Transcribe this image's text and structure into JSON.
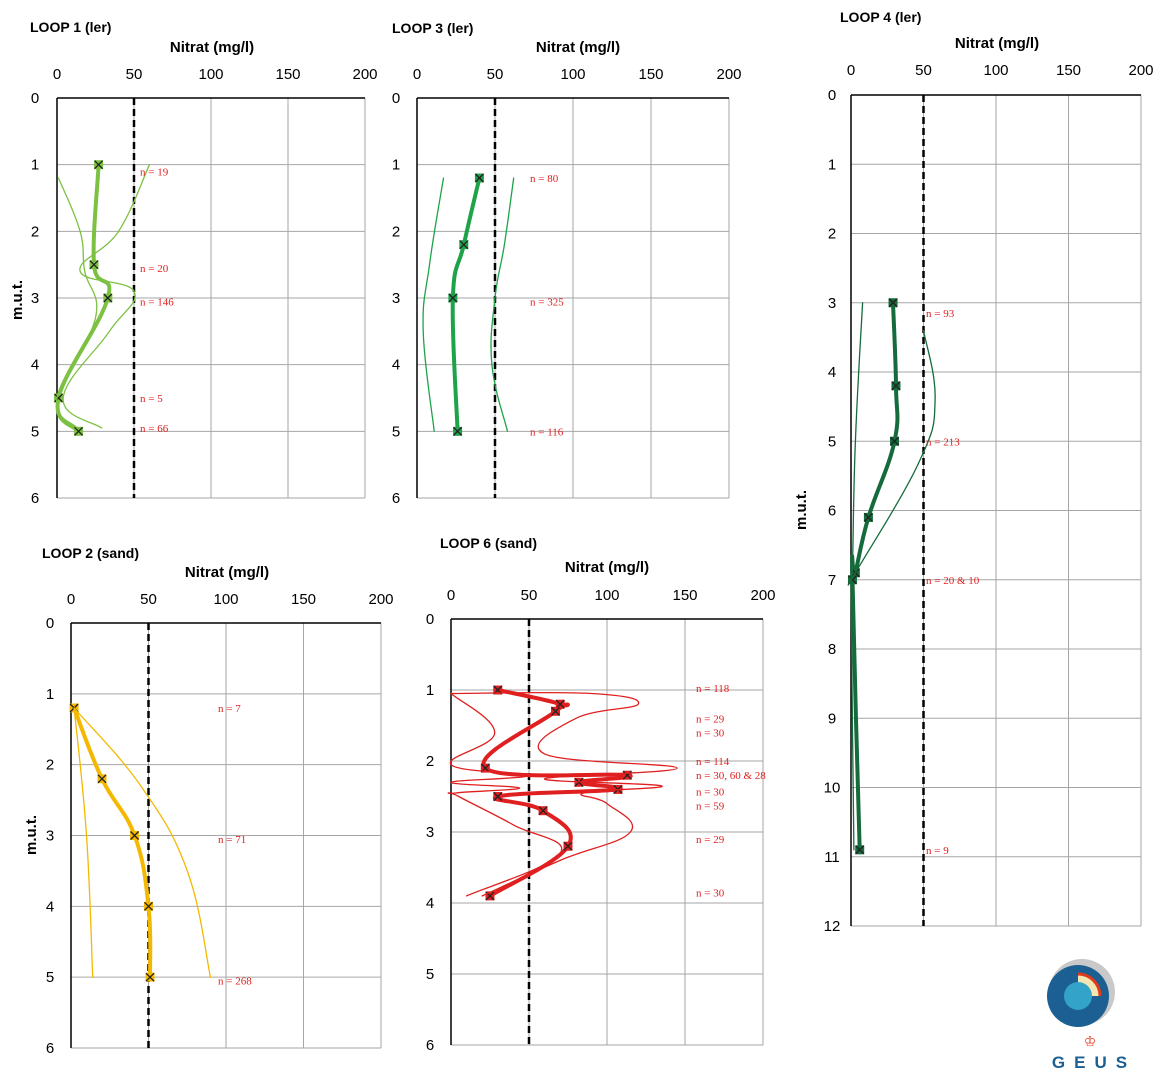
{
  "figure": {
    "logo": {
      "text": "GEUS"
    }
  },
  "chart_data": [
    {
      "id": "loop1",
      "type": "line",
      "title": "LOOP 1 (ler)",
      "xlabel": "Nitrat (mg/l)",
      "ylabel": "m.u.t.",
      "xlim": [
        0,
        200
      ],
      "ylim": [
        6,
        0
      ],
      "xticks": [
        0,
        50,
        100,
        150,
        200
      ],
      "yticks": [
        0,
        1,
        2,
        3,
        4,
        5,
        6
      ],
      "threshold": 50,
      "color": "#7cc142",
      "series": [
        {
          "role": "mean",
          "x": [
            27,
            24,
            33,
            1,
            14
          ],
          "y": [
            1.0,
            2.5,
            3.0,
            4.5,
            5.0
          ]
        },
        {
          "role": "lower",
          "x": [
            1,
            15,
            18,
            25,
            0,
            13
          ],
          "y": [
            1.2,
            2.0,
            2.6,
            3.3,
            4.5,
            4.95
          ]
        },
        {
          "role": "upper",
          "x": [
            60,
            40,
            15,
            50,
            34,
            4,
            29
          ],
          "y": [
            1.0,
            2.0,
            2.6,
            2.9,
            3.5,
            4.5,
            4.95
          ]
        }
      ],
      "annotations": [
        {
          "text": "n = 19",
          "y": 1.1
        },
        {
          "text": "n = 20",
          "y": 2.55
        },
        {
          "text": "n = 146",
          "y": 3.05
        },
        {
          "text": "n = 5",
          "y": 4.5
        },
        {
          "text": "n = 66",
          "y": 4.95
        }
      ]
    },
    {
      "id": "loop3",
      "type": "line",
      "title": "LOOP 3 (ler)",
      "xlabel": "Nitrat (mg/l)",
      "ylabel": "",
      "xlim": [
        0,
        200
      ],
      "ylim": [
        6,
        0
      ],
      "xticks": [
        0,
        50,
        100,
        150,
        200
      ],
      "yticks": [
        0,
        1,
        2,
        3,
        4,
        5,
        6
      ],
      "threshold": 50,
      "color": "#1ea34a",
      "series": [
        {
          "role": "mean",
          "x": [
            40,
            30,
            23,
            26
          ],
          "y": [
            1.2,
            2.2,
            3.0,
            5.0
          ]
        },
        {
          "role": "lower",
          "x": [
            17,
            8,
            4,
            11
          ],
          "y": [
            1.2,
            2.5,
            3.5,
            5.0
          ]
        },
        {
          "role": "upper",
          "x": [
            62,
            56,
            50,
            48,
            58
          ],
          "y": [
            1.2,
            2.2,
            3.0,
            4.0,
            5.0
          ]
        }
      ],
      "annotations": [
        {
          "text": "n = 80",
          "y": 1.2
        },
        {
          "text": "n = 325",
          "y": 3.05
        },
        {
          "text": "n = 116",
          "y": 5.0
        }
      ]
    },
    {
      "id": "loop4",
      "type": "line",
      "title": "LOOP 4 (ler)",
      "xlabel": "Nitrat (mg/l)",
      "ylabel": "m.u.t.",
      "xlim": [
        0,
        200
      ],
      "ylim": [
        12,
        0
      ],
      "xticks": [
        0,
        50,
        100,
        150,
        200
      ],
      "yticks": [
        0,
        1,
        2,
        3,
        4,
        5,
        6,
        7,
        8,
        9,
        10,
        11,
        12
      ],
      "threshold": 50,
      "color": "#156b3b",
      "series": [
        {
          "role": "mean",
          "x": [
            29,
            31,
            30,
            12,
            3,
            1,
            6
          ],
          "y": [
            3.0,
            4.2,
            5.0,
            6.1,
            6.9,
            7.0,
            10.9
          ]
        },
        {
          "role": "lower",
          "x": [
            8,
            3,
            1,
            0,
            2
          ],
          "y": [
            3.0,
            5.0,
            6.8,
            7.0,
            10.9
          ]
        },
        {
          "role": "upper",
          "x": [
            50,
            58,
            47,
            3,
            0
          ],
          "y": [
            3.4,
            4.4,
            5.3,
            6.9,
            7.0
          ]
        }
      ],
      "annotations": [
        {
          "text": "n = 93",
          "y": 3.15
        },
        {
          "text": "n = 213",
          "y": 5.0
        },
        {
          "text": "n = 20 & 10",
          "y": 7.0
        },
        {
          "text": "n = 9",
          "y": 10.9
        }
      ]
    },
    {
      "id": "loop2",
      "type": "line",
      "title": "LOOP 2 (sand)",
      "xlabel": "Nitrat (mg/l)",
      "ylabel": "m.u.t.",
      "xlim": [
        0,
        200
      ],
      "ylim": [
        6,
        0
      ],
      "xticks": [
        0,
        50,
        100,
        150,
        200
      ],
      "yticks": [
        0,
        1,
        2,
        3,
        4,
        5,
        6
      ],
      "threshold": 50,
      "color": "#f5b800",
      "series": [
        {
          "role": "mean",
          "x": [
            2,
            20,
            41,
            50,
            51
          ],
          "y": [
            1.2,
            2.2,
            3.0,
            4.0,
            5.0
          ]
        },
        {
          "role": "lower",
          "x": [
            2,
            10,
            14
          ],
          "y": [
            1.2,
            3.0,
            5.0
          ]
        },
        {
          "role": "upper",
          "x": [
            2,
            45,
            75,
            90
          ],
          "y": [
            1.2,
            2.3,
            3.5,
            5.0
          ]
        }
      ],
      "annotations": [
        {
          "text": "n = 7",
          "y": 1.2
        },
        {
          "text": "n = 71",
          "y": 3.05
        },
        {
          "text": "n = 268",
          "y": 5.05
        }
      ]
    },
    {
      "id": "loop6",
      "type": "line",
      "title": "LOOP 6 (sand)",
      "xlabel": "Nitrat (mg/l)",
      "ylabel": "",
      "xlim": [
        0,
        200
      ],
      "ylim": [
        6,
        0
      ],
      "xticks": [
        0,
        50,
        100,
        150,
        200
      ],
      "yticks": [
        0,
        1,
        2,
        3,
        4,
        5,
        6
      ],
      "threshold": 50,
      "color": "#e02020",
      "series": [
        {
          "role": "mean",
          "x": [
            30,
            70,
            67,
            22,
            113,
            82,
            107,
            30,
            59,
            75,
            25
          ],
          "y": [
            1.0,
            1.2,
            1.3,
            2.1,
            2.2,
            2.3,
            2.4,
            2.5,
            2.7,
            3.2,
            3.9
          ]
        },
        {
          "role": "lower",
          "x": [
            0,
            28,
            0,
            50,
            0,
            44,
            3,
            5,
            40,
            70,
            10
          ],
          "y": [
            1.05,
            1.6,
            2.05,
            2.2,
            2.3,
            2.38,
            2.45,
            2.5,
            2.9,
            3.3,
            3.9
          ]
        },
        {
          "role": "upper",
          "x": [
            0,
            90,
            120,
            80,
            60,
            145,
            60,
            135,
            85,
            100,
            115,
            70,
            20
          ],
          "y": [
            1.05,
            1.05,
            1.2,
            1.4,
            1.9,
            2.1,
            2.25,
            2.35,
            2.45,
            2.6,
            3.0,
            3.4,
            3.9
          ]
        }
      ],
      "annotations": [
        {
          "text": "n = 118",
          "y": 0.97
        },
        {
          "text": "n = 29",
          "y": 1.4
        },
        {
          "text": "n = 30",
          "y": 1.6
        },
        {
          "text": "n = 114",
          "y": 2.0
        },
        {
          "text": "n = 30, 60 & 28",
          "y": 2.2
        },
        {
          "text": "n = 30",
          "y": 2.43
        },
        {
          "text": "n = 59",
          "y": 2.63
        },
        {
          "text": "n = 29",
          "y": 3.1
        },
        {
          "text": "n = 30",
          "y": 3.85
        }
      ]
    }
  ]
}
